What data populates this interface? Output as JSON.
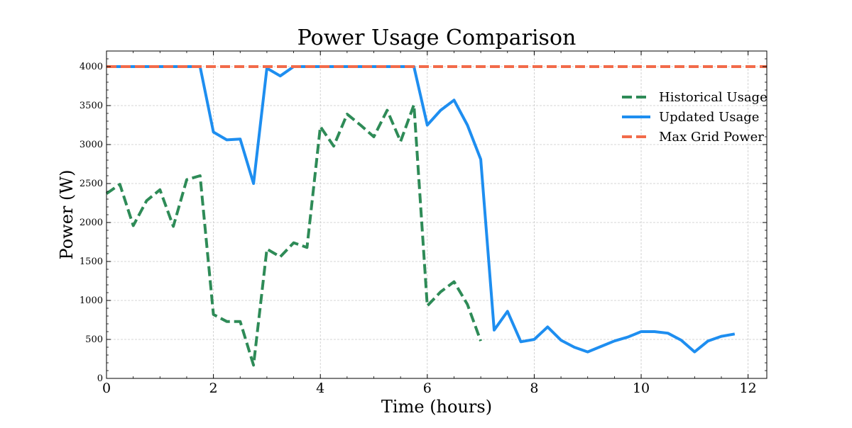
{
  "chart_data": {
    "type": "line",
    "title": "Power Usage Comparison",
    "xlabel": "Time (hours)",
    "ylabel": "Power (W)",
    "xlim": [
      0,
      12.35
    ],
    "ylim": [
      0,
      4200
    ],
    "x_ticks": [
      0,
      2,
      4,
      6,
      8,
      10,
      12
    ],
    "y_ticks": [
      0,
      500,
      1000,
      1500,
      2000,
      2500,
      3000,
      3500,
      4000
    ],
    "grid": true,
    "legend_position": "upper-right",
    "series": [
      {
        "name": "Historical Usage",
        "color": "#2e8b57",
        "style": "dashed",
        "x": [
          0,
          0.25,
          0.5,
          0.75,
          1,
          1.25,
          1.5,
          1.75,
          2,
          2.25,
          2.5,
          2.75,
          3,
          3.25,
          3.5,
          3.75,
          4,
          4.25,
          4.5,
          4.75,
          5,
          5.25,
          5.5,
          5.75,
          6,
          6.25,
          6.5,
          6.75,
          7
        ],
        "y": [
          2370,
          2490,
          1960,
          2280,
          2420,
          1950,
          2550,
          2600,
          820,
          730,
          730,
          170,
          1660,
          1560,
          1740,
          1680,
          3230,
          2980,
          3390,
          3250,
          3100,
          3440,
          3040,
          3510,
          930,
          1110,
          1240,
          950,
          480
        ]
      },
      {
        "name": "Updated Usage",
        "color": "#1e8ef0",
        "style": "solid",
        "x": [
          0,
          0.25,
          0.5,
          0.75,
          1,
          1.25,
          1.5,
          1.75,
          2,
          2.25,
          2.5,
          2.75,
          3,
          3.25,
          3.5,
          3.75,
          4,
          4.25,
          4.5,
          4.75,
          5,
          5.25,
          5.5,
          5.75,
          6,
          6.25,
          6.5,
          6.75,
          7,
          7.25,
          7.5,
          7.75,
          8,
          8.25,
          8.5,
          8.75,
          9,
          9.25,
          9.5,
          9.75,
          10,
          10.25,
          10.5,
          10.75,
          11,
          11.25,
          11.5,
          11.75
        ],
        "y": [
          4000,
          4000,
          4000,
          4000,
          4000,
          4000,
          4000,
          4000,
          3160,
          3060,
          3070,
          2500,
          3980,
          3880,
          4000,
          4000,
          4000,
          4000,
          4000,
          4000,
          4000,
          4000,
          4000,
          4000,
          3250,
          3440,
          3570,
          3250,
          2810,
          620,
          860,
          470,
          500,
          660,
          490,
          400,
          340,
          410,
          480,
          530,
          600,
          600,
          580,
          490,
          340,
          480,
          540,
          570
        ]
      },
      {
        "name": "Max Grid Power",
        "color": "#f26b4a",
        "style": "dashed",
        "x": [
          0,
          12.35
        ],
        "y": [
          4000,
          4000
        ]
      }
    ]
  }
}
